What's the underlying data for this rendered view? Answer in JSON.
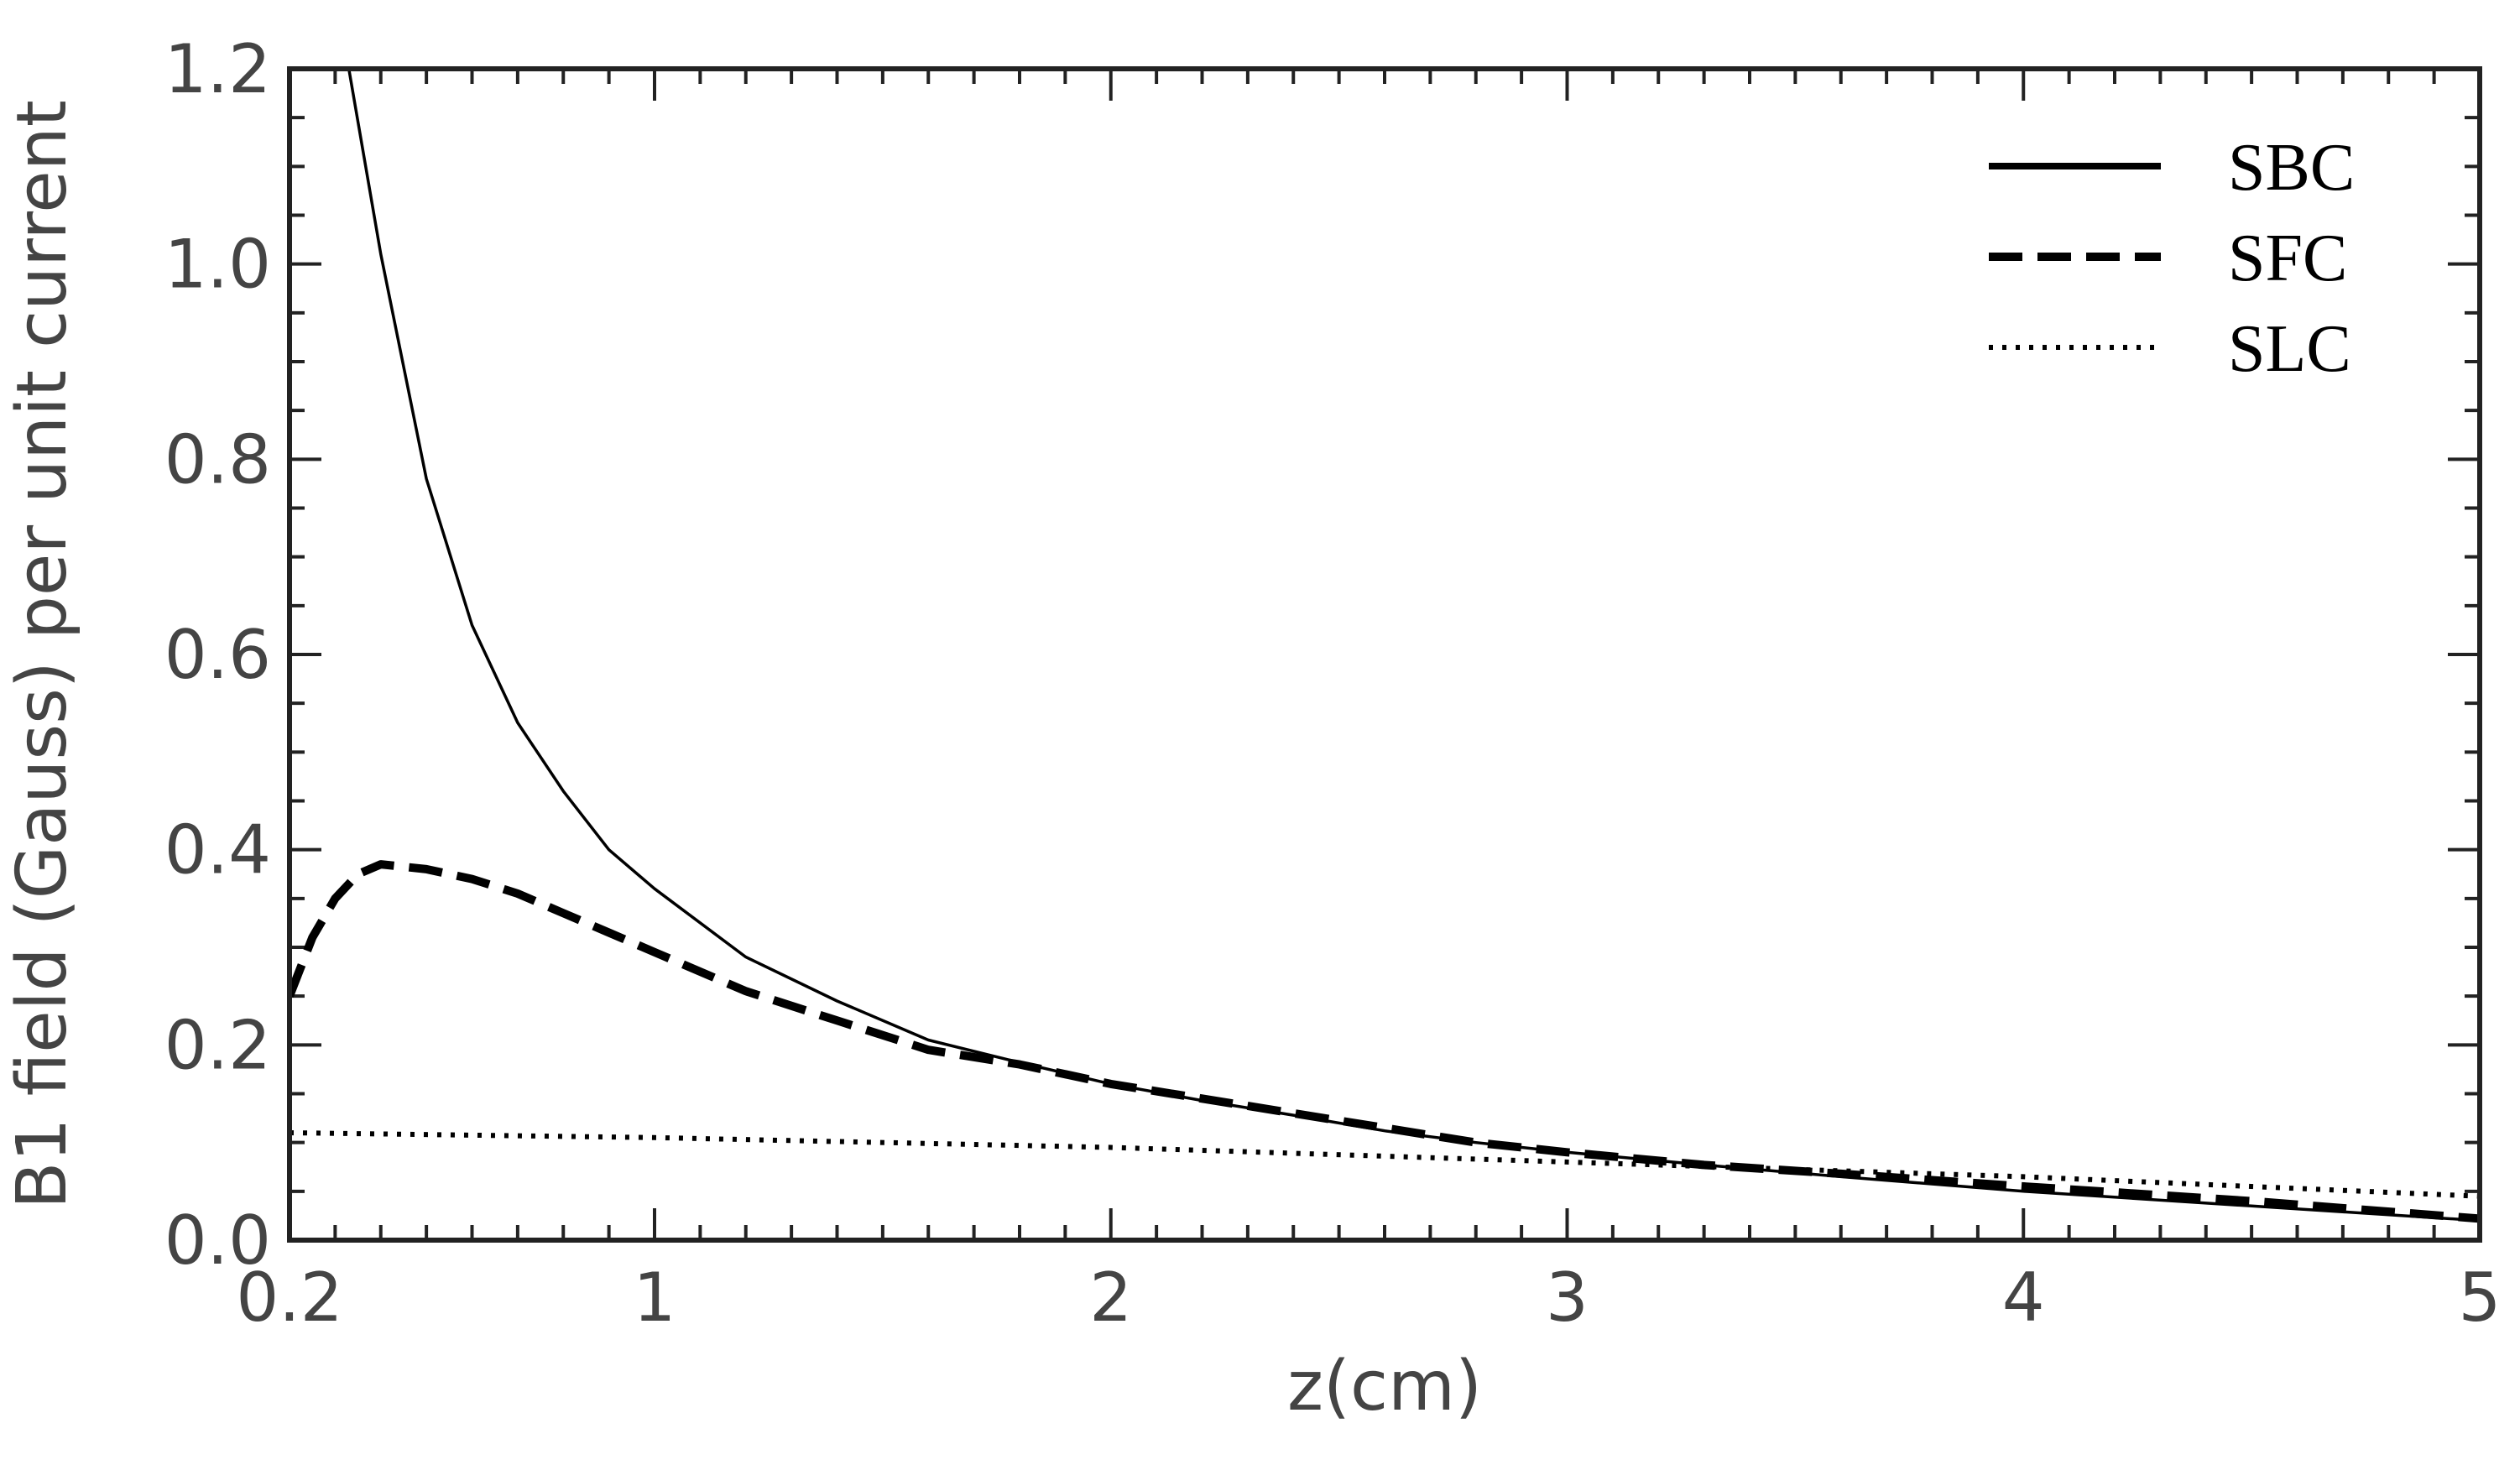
{
  "chart_data": {
    "type": "line",
    "title": "",
    "xlabel": "z(cm)",
    "ylabel": "B1 field (Gauss) per unit current",
    "xlim": [
      0.2,
      5
    ],
    "ylim": [
      0,
      1.2
    ],
    "x_ticks": [
      0.2,
      1,
      2,
      3,
      4,
      5
    ],
    "x_tick_labels": [
      "0.2",
      "1",
      "2",
      "3",
      "4",
      "5"
    ],
    "y_ticks": [
      0,
      0.2,
      0.4,
      0.6,
      0.8,
      1.0,
      1.2
    ],
    "y_tick_labels": [
      "0.0",
      "0.2",
      "0.4",
      "0.6",
      "0.8",
      "1.0",
      "1.2"
    ],
    "grid": false,
    "legend_position": "top-right",
    "series": [
      {
        "name": "SBC",
        "style": "solid",
        "color": "#000000",
        "x": [
          0.33,
          0.4,
          0.5,
          0.6,
          0.7,
          0.8,
          0.9,
          1.0,
          1.2,
          1.4,
          1.6,
          1.8,
          2.0,
          2.2,
          2.4,
          2.6,
          2.8,
          3.0,
          3.3,
          3.6,
          4.0,
          4.5,
          5.0
        ],
        "y": [
          1.2,
          1.01,
          0.78,
          0.63,
          0.53,
          0.46,
          0.4,
          0.36,
          0.29,
          0.245,
          0.205,
          0.182,
          0.16,
          0.143,
          0.128,
          0.112,
          0.1,
          0.09,
          0.077,
          0.065,
          0.05,
          0.035,
          0.02
        ]
      },
      {
        "name": "SFC",
        "style": "dashed",
        "color": "#000000",
        "x": [
          0.2,
          0.25,
          0.3,
          0.35,
          0.4,
          0.5,
          0.6,
          0.7,
          0.8,
          0.9,
          1.0,
          1.2,
          1.4,
          1.6,
          1.8,
          2.0,
          2.2,
          2.4,
          2.6,
          2.8,
          3.0,
          3.3,
          3.6,
          4.0,
          4.5,
          5.0
        ],
        "y": [
          0.25,
          0.31,
          0.35,
          0.375,
          0.385,
          0.38,
          0.37,
          0.355,
          0.335,
          0.315,
          0.295,
          0.255,
          0.225,
          0.195,
          0.18,
          0.16,
          0.145,
          0.13,
          0.115,
          0.1,
          0.09,
          0.077,
          0.068,
          0.055,
          0.04,
          0.022
        ]
      },
      {
        "name": "SLC",
        "style": "dotted",
        "color": "#000000",
        "x": [
          0.2,
          1.0,
          2.0,
          3.0,
          4.0,
          5.0
        ],
        "y": [
          0.11,
          0.105,
          0.095,
          0.08,
          0.065,
          0.045
        ]
      }
    ]
  }
}
